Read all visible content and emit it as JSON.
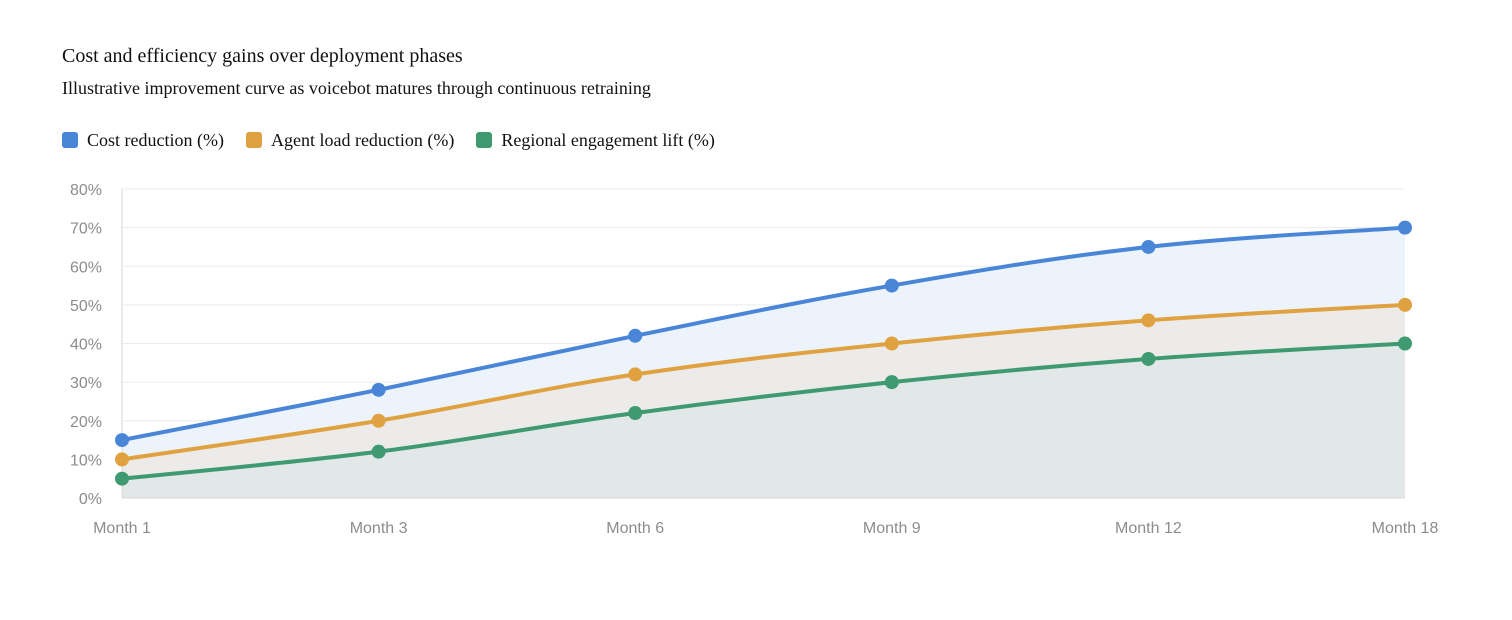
{
  "chart_data": {
    "type": "area",
    "title": "Cost and efficiency gains over deployment phases",
    "subtitle": "Illustrative improvement curve as voicebot matures through continuous retraining",
    "categories": [
      "Month 1",
      "Month 3",
      "Month 6",
      "Month 9",
      "Month 12",
      "Month 18"
    ],
    "series": [
      {
        "name": "Cost reduction (%)",
        "values": [
          15,
          28,
          42,
          55,
          65,
          70
        ],
        "color": "#4a86d8",
        "fill": "#edf3fb"
      },
      {
        "name": "Agent load reduction (%)",
        "values": [
          10,
          20,
          32,
          40,
          46,
          50
        ],
        "color": "#e0a240",
        "fill": "#ecebea"
      },
      {
        "name": "Regional engagement lift (%)",
        "values": [
          5,
          12,
          22,
          30,
          36,
          40
        ],
        "color": "#3f9a72",
        "fill": "#e2e8e7"
      }
    ],
    "yticks": [
      "0%",
      "10%",
      "20%",
      "30%",
      "40%",
      "50%",
      "60%",
      "70%",
      "80%"
    ],
    "ylim": [
      0,
      80
    ],
    "grid": true,
    "legend_position": "top-left"
  }
}
